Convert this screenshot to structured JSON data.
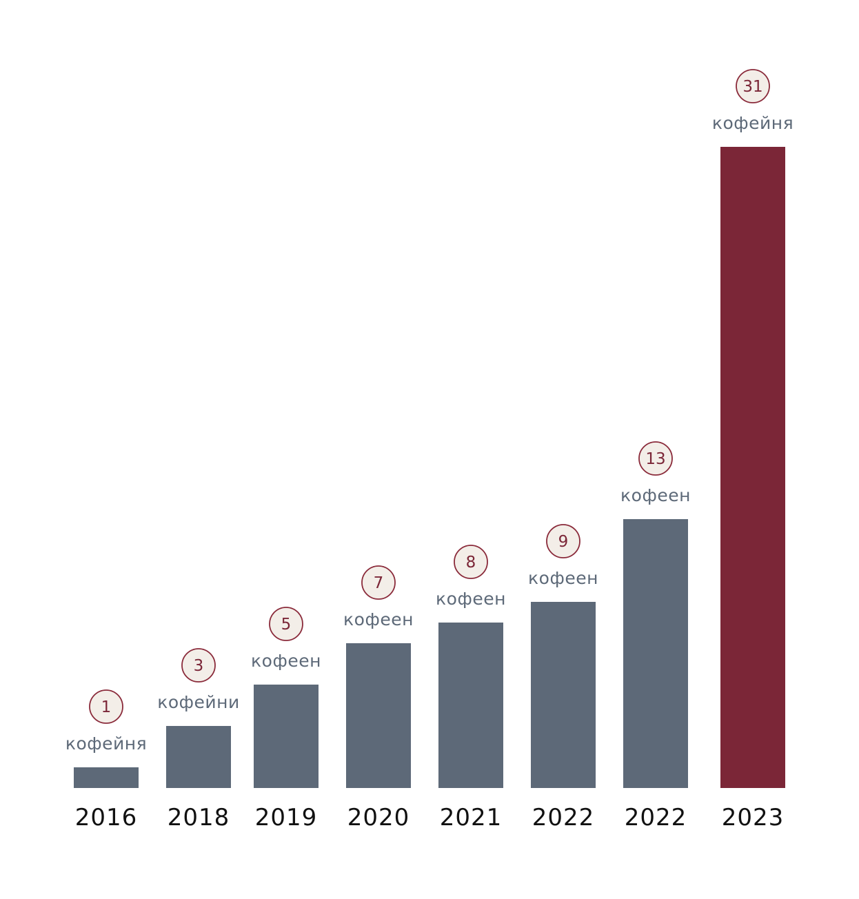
{
  "chart_data": {
    "type": "bar",
    "title": "",
    "xlabel": "",
    "ylabel": "",
    "categories": [
      "2016",
      "2018",
      "2019",
      "2020",
      "2021",
      "2022",
      "2022",
      "2023"
    ],
    "values": [
      1,
      3,
      5,
      7,
      8,
      9,
      13,
      31
    ],
    "value_units": [
      "кофейня",
      "кофейни",
      "кофеен",
      "кофеен",
      "кофеен",
      "кофеен",
      "кофеен",
      "кофейня"
    ],
    "highlight_index": 7,
    "grid": false,
    "legend": "none",
    "colors": {
      "bar": "#5d6978",
      "highlight_bar": "#7b2637",
      "circle_fill": "#f3eee8",
      "circle_stroke": "#8a2a3a",
      "value_text": "#7b2637",
      "unit_text": "#5d6978",
      "year_text": "#111111"
    }
  }
}
